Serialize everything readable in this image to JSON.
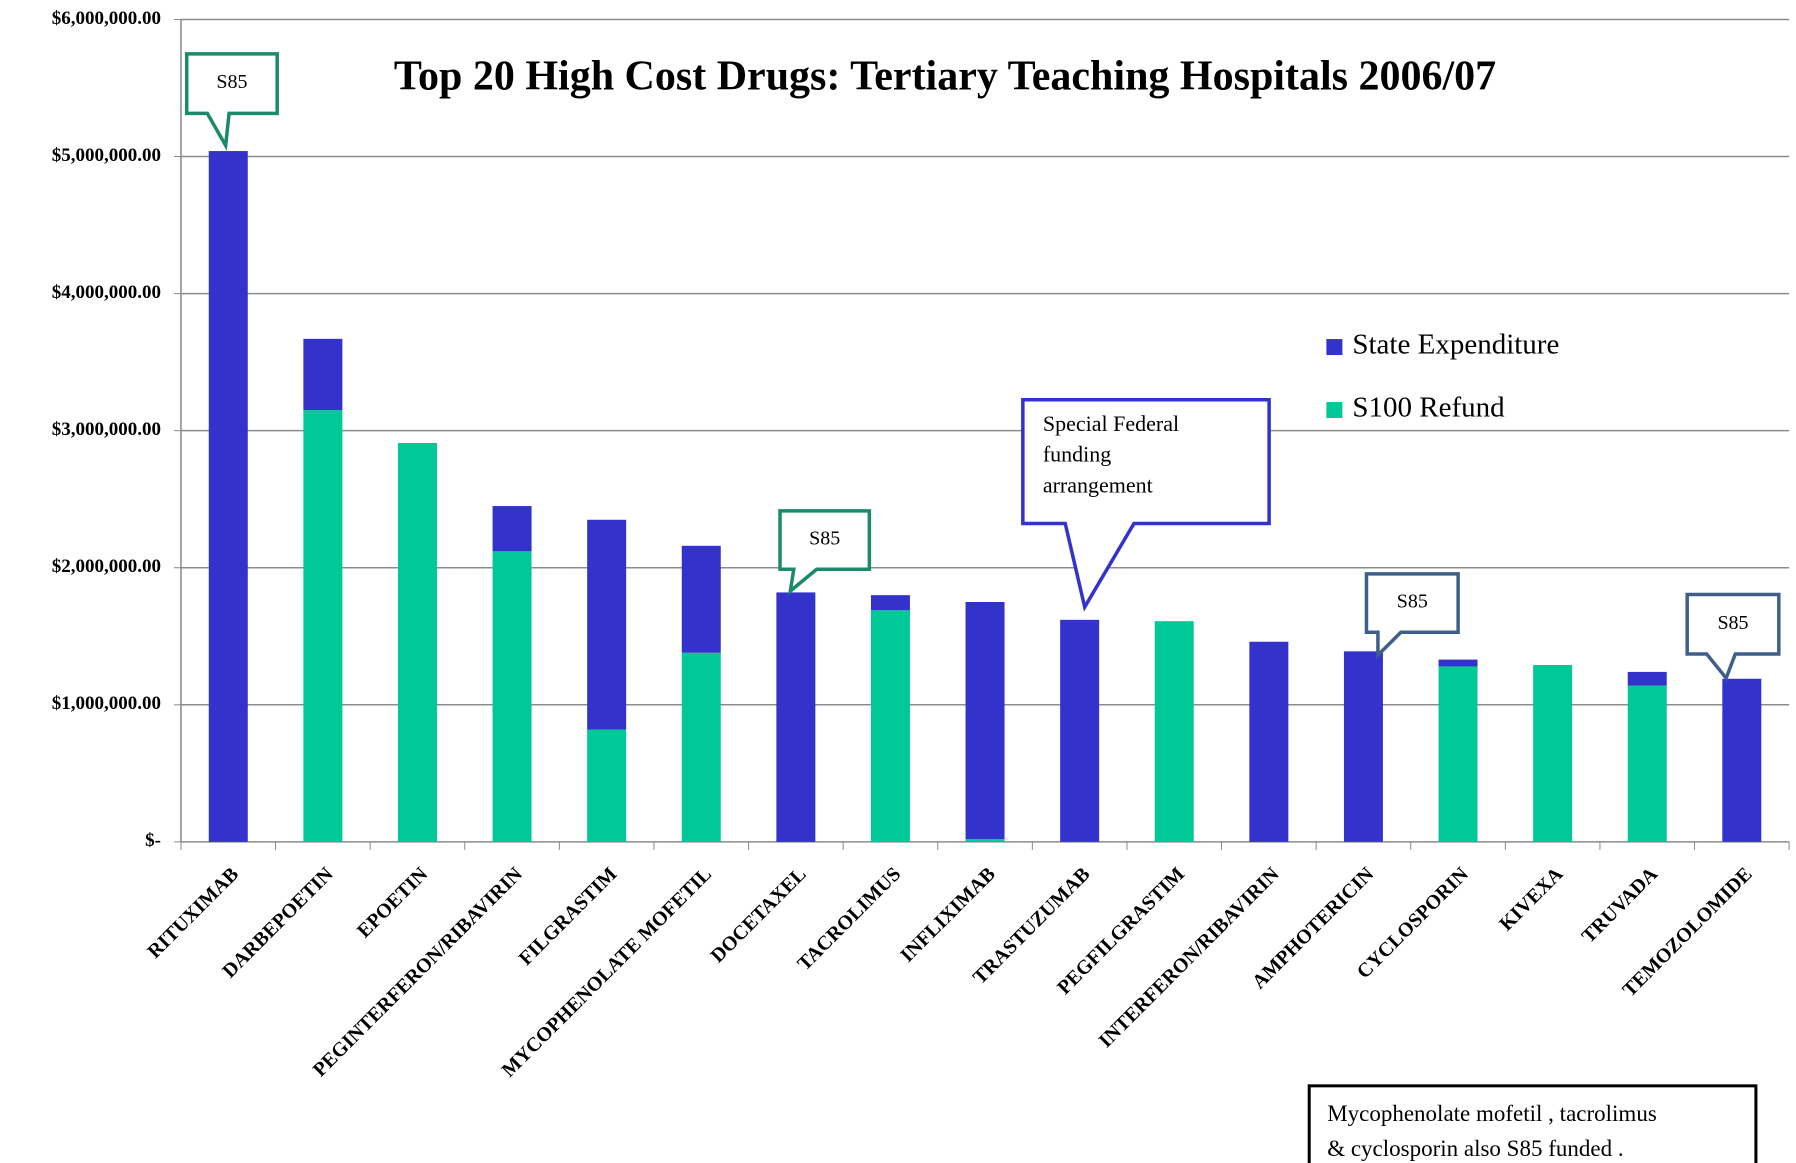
{
  "chart_data": {
    "type": "stacked_bar",
    "title": "Top 20 High Cost Drugs: Tertiary Teaching Hospitals 2006/07",
    "categories": [
      "RITUXIMAB",
      "DARBEPOETIN",
      "EPOETIN",
      "PEGINTERFERON/RIBAVIRIN",
      "FILGRASTIM",
      "MYCOPHENOLATE MOFETIL",
      "DOCETAXEL",
      "TACROLIMUS",
      "INFLIXIMAB",
      "TRASTUZUMAB",
      "PEGFILGRASTIM",
      "INTERFERON/RIBAVIRIN",
      "AMPHOTERICIN",
      "CYCLOSPORIN",
      "KIVEXA",
      "TRUVADA",
      "TEMOZOLOMIDE"
    ],
    "series": [
      {
        "name": "S100 Refund",
        "color": "#00c896",
        "values": [
          0,
          3150000,
          2910000,
          2120000,
          820000,
          1380000,
          0,
          1690000,
          20000,
          0,
          1610000,
          0,
          0,
          1280000,
          1290000,
          1140000,
          0
        ]
      },
      {
        "name": "State Expenditure",
        "color": "#3333cc",
        "values": [
          5040000,
          520000,
          0,
          330000,
          1530000,
          780000,
          1820000,
          110000,
          1730000,
          1620000,
          0,
          1460000,
          1390000,
          50000,
          0,
          100000,
          1190000
        ]
      }
    ],
    "ylim": [
      0,
      6000000
    ],
    "yticks": [
      {
        "value": 0,
        "label": "$-"
      },
      {
        "value": 1000000,
        "label": "$1,000,000.00"
      },
      {
        "value": 2000000,
        "label": "$2,000,000.00"
      },
      {
        "value": 3000000,
        "label": "$3,000,000.00"
      },
      {
        "value": 4000000,
        "label": "$4,000,000.00"
      },
      {
        "value": 5000000,
        "label": "$5,000,000.00"
      },
      {
        "value": 6000000,
        "label": "$6,000,000.00"
      }
    ],
    "grid": true,
    "legend_position": "right",
    "annotations": [
      {
        "lines": [
          "S85"
        ]
      },
      {
        "lines": [
          "S85"
        ]
      },
      {
        "lines": [
          "Special  Federal",
          "funding",
          "arrangement"
        ]
      },
      {
        "lines": [
          "S85"
        ]
      },
      {
        "lines": [
          "S85"
        ]
      },
      {
        "lines": [
          "Mycophenolate mofetil , tacrolimus",
          "& cyclosporin  also S85 funded ."
        ]
      }
    ]
  }
}
